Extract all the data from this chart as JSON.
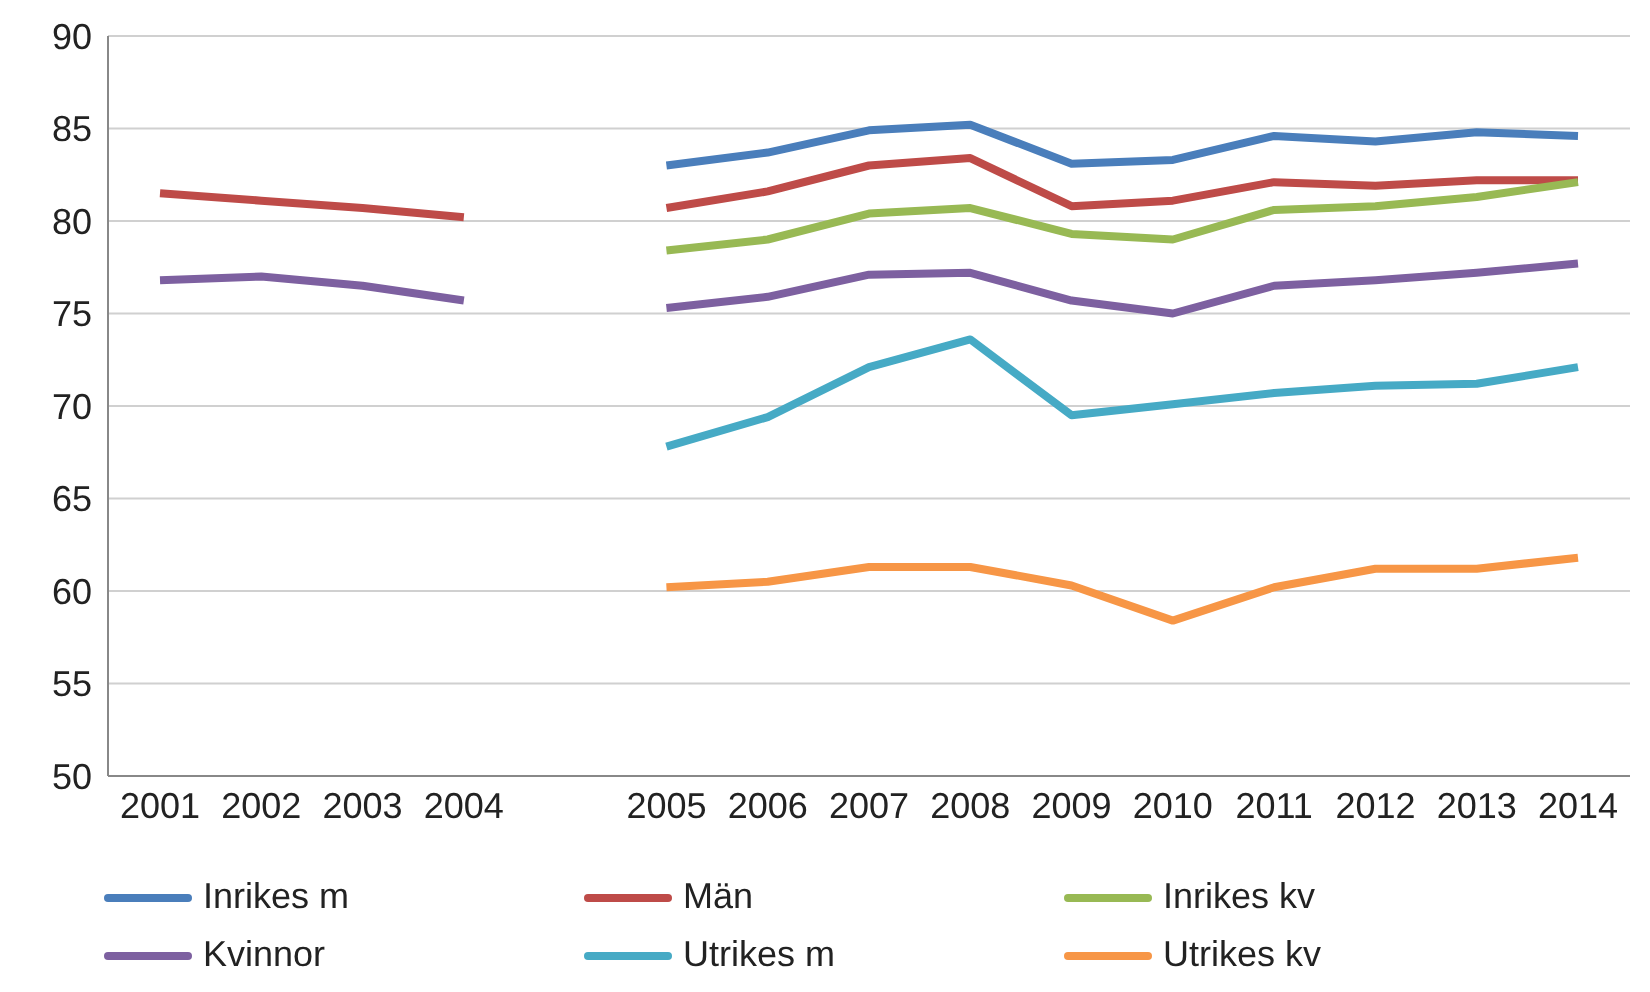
{
  "chart_data": {
    "type": "line",
    "categories": [
      "2001",
      "2002",
      "2003",
      "2004",
      null,
      "2005",
      "2006",
      "2007",
      "2008",
      "2009",
      "2010",
      "2011",
      "2012",
      "2013",
      "2014"
    ],
    "series": [
      {
        "name": "Inrikes m",
        "color": "#4a7ebb",
        "values": [
          null,
          null,
          null,
          null,
          null,
          83.0,
          83.7,
          84.9,
          85.2,
          83.1,
          83.3,
          84.6,
          84.3,
          84.8,
          84.6
        ]
      },
      {
        "name": "Män",
        "color": "#be4b48",
        "values": [
          81.5,
          81.1,
          80.7,
          80.2,
          null,
          80.7,
          81.6,
          83.0,
          83.4,
          80.8,
          81.1,
          82.1,
          81.9,
          82.2,
          82.2
        ]
      },
      {
        "name": "Inrikes kv",
        "color": "#98b954",
        "values": [
          null,
          null,
          null,
          null,
          null,
          78.4,
          79.0,
          80.4,
          80.7,
          79.3,
          79.0,
          80.6,
          80.8,
          81.3,
          82.1
        ]
      },
      {
        "name": "Kvinnor",
        "color": "#7d60a0",
        "values": [
          76.8,
          77.0,
          76.5,
          75.7,
          null,
          75.3,
          75.9,
          77.1,
          77.2,
          75.7,
          75.0,
          76.5,
          76.8,
          77.2,
          77.7
        ]
      },
      {
        "name": "Utrikes m",
        "color": "#46aac5",
        "values": [
          null,
          null,
          null,
          null,
          null,
          67.8,
          69.4,
          72.1,
          73.6,
          69.5,
          70.1,
          70.7,
          71.1,
          71.2,
          72.1
        ]
      },
      {
        "name": "Utrikes kv",
        "color": "#f79646",
        "values": [
          null,
          null,
          null,
          null,
          null,
          60.2,
          60.5,
          61.3,
          61.3,
          60.3,
          58.4,
          60.2,
          61.2,
          61.2,
          61.8
        ]
      }
    ],
    "ylim": [
      50,
      90
    ],
    "yticks": [
      50,
      55,
      60,
      65,
      70,
      75,
      80,
      85,
      90
    ],
    "grid": "y",
    "legend": "bottom",
    "marker": "none",
    "line_style": "solid"
  }
}
